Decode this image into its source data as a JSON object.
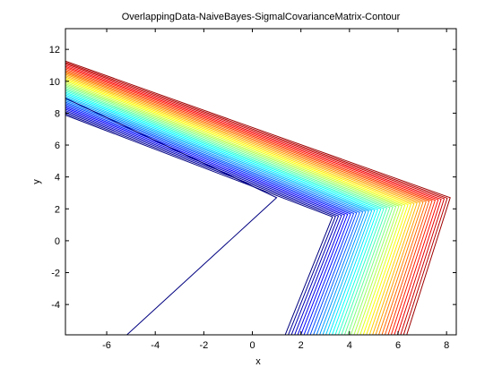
{
  "chart_data": {
    "type": "contour",
    "title": "OverlappingData-NaiveBayes-SigmalCovarianceMatrix-Contour",
    "xlabel": "x",
    "ylabel": "y",
    "xlim": [
      -7.7,
      8.4
    ],
    "ylim": [
      -5.9,
      13.3
    ],
    "x_ticks": [
      -6,
      -4,
      -2,
      0,
      2,
      4,
      6,
      8
    ],
    "y_ticks": [
      -4,
      -2,
      0,
      2,
      4,
      6,
      8,
      10,
      12
    ],
    "x_tick_labels": [
      "-6",
      "-4",
      "-2",
      "0",
      "2",
      "4",
      "6",
      "8"
    ],
    "y_tick_labels": [
      "-4",
      "-2",
      "0",
      "2",
      "4",
      "6",
      "8",
      "10",
      "12"
    ],
    "grid": false,
    "colormap": "jet",
    "n_levels": 40,
    "colors": {
      "background": "#ffffff",
      "axes": "#000000"
    }
  }
}
